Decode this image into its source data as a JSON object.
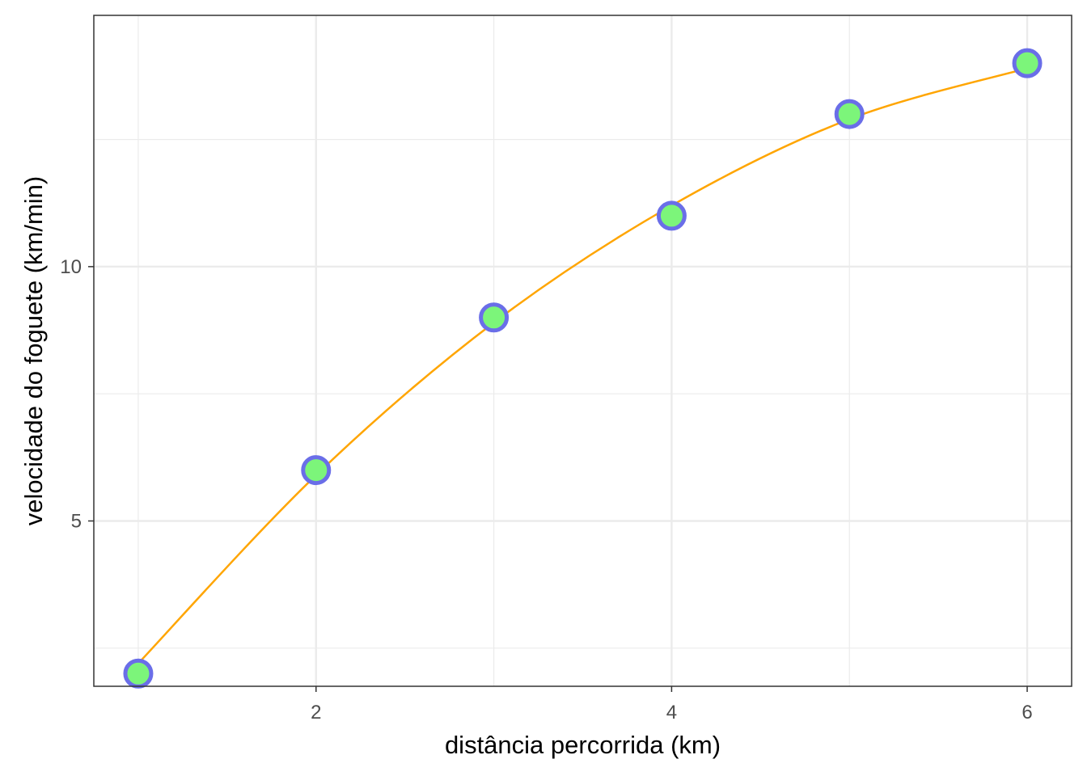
{
  "chart_data": {
    "type": "scatter",
    "title": "",
    "xlabel": "distância percorrida (km)",
    "ylabel": "velocidade do foguete (km/min)",
    "xlim": [
      0.75,
      6.25
    ],
    "ylim": [
      1.75,
      14.94
    ],
    "x_ticks": [
      2,
      4,
      6
    ],
    "y_ticks": [
      5,
      10
    ],
    "x_minor_ticks": [
      1,
      3,
      5
    ],
    "y_minor_ticks": [
      2.5,
      7.5,
      12.5
    ],
    "grid": true,
    "series": [
      {
        "x": [
          1,
          2,
          3,
          4,
          5,
          6
        ],
        "y": [
          2,
          6,
          9,
          11,
          13,
          14
        ]
      }
    ],
    "fit_line": {
      "type": "smooth curve",
      "x": [
        1,
        2,
        3,
        4,
        5,
        6
      ],
      "y": [
        2.2,
        5.9,
        8.9,
        11.2,
        12.9,
        13.9
      ]
    },
    "colors": {
      "point_fill": "#7cf57a",
      "point_outline": "#6a6ee8",
      "fit_line": "#ffa500",
      "grid": "#ebebeb",
      "panel_border": "#333333",
      "tick_text": "#4d4d4d"
    }
  }
}
